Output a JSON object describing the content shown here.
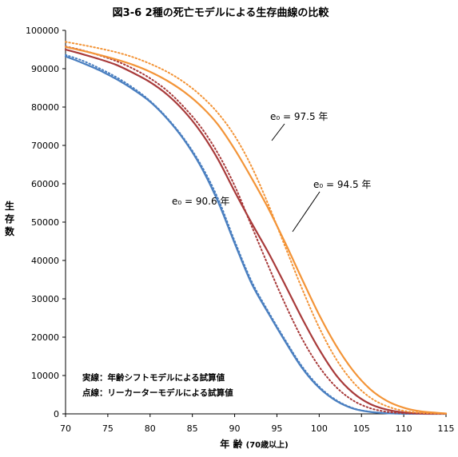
{
  "chart_data": {
    "type": "line",
    "title": "図3-6 2種の死亡モデルによる生存曲線の比較",
    "xlabel_main": "年 齢",
    "xlabel_sub": "(70歳以上)",
    "ylabel": [
      "生",
      "存",
      "数"
    ],
    "xlim": [
      70,
      115
    ],
    "ylim": [
      0,
      100000
    ],
    "x_ticks": [
      "70",
      "75",
      "80",
      "85",
      "90",
      "95",
      "100",
      "105",
      "110",
      "115"
    ],
    "y_ticks": [
      "0",
      "10000",
      "20000",
      "30000",
      "40000",
      "50000",
      "60000",
      "70000",
      "80000",
      "90000",
      "100000"
    ],
    "grid": false,
    "series": [
      {
        "color": "#4a7fc0",
        "style": "solid",
        "x": [
          70,
          72,
          74,
          76,
          78,
          80,
          82,
          84,
          86,
          88,
          90,
          92,
          94,
          96,
          98,
          100,
          102,
          104,
          106,
          108,
          110,
          112,
          115
        ],
        "values": [
          93200,
          91500,
          89600,
          87300,
          84600,
          81400,
          77000,
          71500,
          64500,
          55500,
          44500,
          34000,
          26200,
          18800,
          11900,
          6800,
          3400,
          1400,
          520,
          160,
          40,
          10,
          0
        ]
      },
      {
        "color": "#4a7fc0",
        "style": "dotted",
        "x": [
          70,
          72,
          74,
          76,
          78,
          80,
          82,
          84,
          86,
          88,
          90,
          92,
          94,
          96,
          98,
          100,
          102,
          104,
          106,
          108,
          110,
          112,
          115
        ],
        "values": [
          93600,
          92100,
          90100,
          87800,
          85000,
          81600,
          77200,
          71800,
          65000,
          56300,
          45100,
          34600,
          26600,
          19200,
          12300,
          7100,
          3600,
          1500,
          560,
          170,
          45,
          10,
          0
        ]
      },
      {
        "color": "#a83a3a",
        "style": "solid",
        "x": [
          70,
          72,
          74,
          76,
          78,
          80,
          82,
          84,
          86,
          88,
          90,
          92,
          94,
          96,
          98,
          100,
          102,
          104,
          106,
          108,
          110,
          112,
          115
        ],
        "values": [
          95000,
          93800,
          92500,
          91000,
          88900,
          86500,
          83300,
          79000,
          73500,
          66500,
          58000,
          49800,
          42000,
          33500,
          24800,
          16800,
          10100,
          5500,
          2600,
          1100,
          380,
          110,
          10
        ]
      },
      {
        "color": "#a83a3a",
        "style": "dotted",
        "x": [
          70,
          72,
          74,
          76,
          78,
          80,
          82,
          84,
          86,
          88,
          90,
          92,
          94,
          96,
          98,
          100,
          102,
          104,
          106,
          108,
          110,
          112,
          115
        ],
        "values": [
          95800,
          94800,
          93500,
          92000,
          90000,
          87500,
          84300,
          80000,
          74800,
          68000,
          59500,
          49000,
          38500,
          28500,
          19500,
          12300,
          7000,
          3500,
          1500,
          550,
          170,
          45,
          5
        ]
      },
      {
        "color": "#f39437",
        "style": "solid",
        "x": [
          70,
          72,
          74,
          76,
          78,
          80,
          82,
          84,
          86,
          88,
          90,
          92,
          94,
          96,
          98,
          100,
          102,
          104,
          106,
          108,
          110,
          112,
          115
        ],
        "values": [
          95700,
          94700,
          93600,
          92400,
          91000,
          89200,
          86900,
          84000,
          80300,
          75500,
          69000,
          61500,
          53500,
          44500,
          35000,
          25800,
          17800,
          11300,
          6500,
          3400,
          1600,
          650,
          100
        ]
      },
      {
        "color": "#f39437",
        "style": "dotted",
        "x": [
          70,
          72,
          74,
          76,
          78,
          80,
          82,
          84,
          86,
          88,
          90,
          92,
          94,
          96,
          98,
          100,
          102,
          104,
          106,
          108,
          110,
          112,
          115
        ],
        "values": [
          97000,
          96200,
          95300,
          94300,
          93000,
          91300,
          89200,
          86500,
          83000,
          78500,
          72500,
          64500,
          54500,
          43500,
          32500,
          22500,
          14300,
          8300,
          4300,
          2000,
          800,
          280,
          30
        ]
      }
    ],
    "annotations": [
      {
        "text": "e₀ =   97.5 年"
      },
      {
        "text": "e₀ =  94.5 年"
      },
      {
        "text": "e₀ = 90.6 年"
      }
    ],
    "notes": [
      "実線：年齢シフトモデルによる試算値",
      "点線：リーカーターモデルによる試算値"
    ]
  }
}
